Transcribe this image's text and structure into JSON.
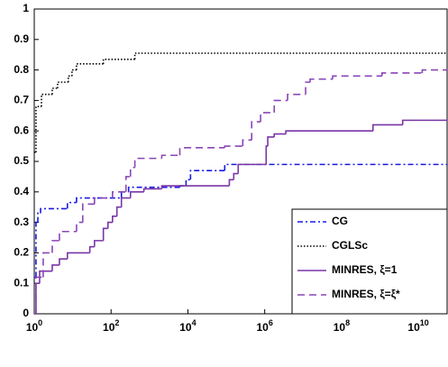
{
  "chart_data": {
    "type": "step",
    "xscale": "log",
    "xlim": [
      1,
      56000000000
    ],
    "ylim": [
      0,
      1
    ],
    "xticks": [
      {
        "value": 1,
        "label": "10^0"
      },
      {
        "value": 100,
        "label": "10^2"
      },
      {
        "value": 10000,
        "label": "10^4"
      },
      {
        "value": 1000000,
        "label": "10^6"
      },
      {
        "value": 100000000,
        "label": "10^8"
      },
      {
        "value": 10000000000,
        "label": "10^10"
      }
    ],
    "yticks": [
      0,
      0.1,
      0.2,
      0.3,
      0.4,
      0.5,
      0.6,
      0.7,
      0.8,
      0.9,
      1
    ],
    "legend": "lower right",
    "series": [
      {
        "name": "CG",
        "color": "#1a1ae0",
        "dash": "6 3 2 3",
        "x": [
          1,
          1.11,
          1.24,
          1.46,
          7.3,
          12.6,
          186,
          286,
          6160,
          8960,
          11700,
          91000
        ],
        "values": [
          0.12,
          0.3,
          0.33,
          0.345,
          0.365,
          0.38,
          0.4,
          0.415,
          0.42,
          0.44,
          0.47,
          0.49
        ]
      },
      {
        "name": "CGLSc",
        "color": "#000000",
        "dash": "1.5 2",
        "x": [
          1,
          1.11,
          1.54,
          2.94,
          4.06,
          7.7,
          9.6,
          12.6,
          63,
          416
        ],
        "values": [
          0.53,
          0.68,
          0.72,
          0.74,
          0.76,
          0.78,
          0.8,
          0.82,
          0.835,
          0.855
        ]
      },
      {
        "name": "MINRES, ξ=1",
        "color": "#7a35a8",
        "dash": "",
        "x": [
          1,
          1.11,
          1.38,
          2.94,
          4.52,
          7.3,
          28,
          37,
          63,
          83,
          109,
          142,
          186,
          320,
          715,
          2090,
          120000,
          156000,
          204000,
          1090000,
          1200000,
          1770000,
          3550000,
          660000000,
          3900000000
        ],
        "values": [
          0,
          0.1,
          0.14,
          0.16,
          0.18,
          0.2,
          0.22,
          0.24,
          0.28,
          0.3,
          0.32,
          0.35,
          0.38,
          0.4,
          0.41,
          0.42,
          0.44,
          0.46,
          0.49,
          0.55,
          0.58,
          0.59,
          0.6,
          0.62,
          0.635
        ]
      },
      {
        "name": "MINRES, ξ=ξ*",
        "color": "#8a45b8",
        "dash": "8 5",
        "x": [
          1,
          1.11,
          1.71,
          2.94,
          4.52,
          12.6,
          18.3,
          37,
          109,
          244,
          320,
          416,
          2090,
          6160,
          91000,
          268000,
          458000,
          781000,
          1770000,
          3940000,
          11600000,
          15200000,
          58700000,
          1130000000,
          12600000000
        ],
        "values": [
          0,
          0.12,
          0.2,
          0.24,
          0.27,
          0.3,
          0.36,
          0.38,
          0.4,
          0.45,
          0.48,
          0.51,
          0.52,
          0.545,
          0.55,
          0.57,
          0.63,
          0.66,
          0.7,
          0.72,
          0.76,
          0.77,
          0.78,
          0.79,
          0.8
        ]
      }
    ]
  }
}
